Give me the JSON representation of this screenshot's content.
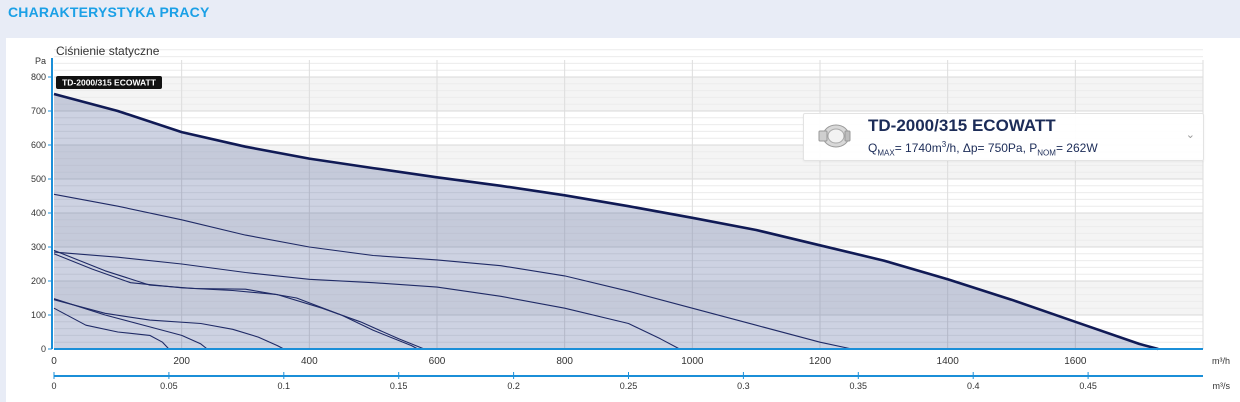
{
  "section": {
    "title": "CHARAKTERYSTYKA PRACY"
  },
  "legend": {
    "name": "TD-2000/315 ECOWATT",
    "q_label": "Q",
    "q_sub": "MAX",
    "q_value": "= 1740m",
    "q_sup": "3",
    "q_unit": "/h,",
    "dp_text": " Δp= 750Pa,",
    "p_label": " P",
    "p_sub": "NOM",
    "p_value": "= 262W",
    "icon": "fan-thumbnail-icon",
    "toggle_icon": "chevron-down-icon"
  },
  "chart_data": {
    "type": "line",
    "title": "Ciśnienie statyczne",
    "ylabel": "Pa",
    "xlabel": "m³/h",
    "x2label": "m³/s",
    "ylim": [
      0,
      850
    ],
    "xlim": [
      0,
      1800
    ],
    "yticks": [
      0,
      100,
      200,
      300,
      400,
      500,
      600,
      700,
      800
    ],
    "xticks": [
      0,
      200,
      400,
      600,
      800,
      1000,
      1200,
      1400,
      1600
    ],
    "x2ticks": [
      "0",
      "0.05",
      "0.1",
      "0.15",
      "0.2",
      "0.25",
      "0.3",
      "0.35",
      "0.4",
      "0.45"
    ],
    "x2values": [
      0,
      0.05,
      0.1,
      0.15,
      0.2,
      0.25,
      0.3,
      0.35,
      0.4,
      0.45
    ],
    "grid": true,
    "curve_label": "TD-2000/315 ECOWATT",
    "series": [
      {
        "name": "TD-2000/315 ECOWATT",
        "main": true,
        "points": [
          [
            0,
            750
          ],
          [
            100,
            700
          ],
          [
            200,
            638
          ],
          [
            300,
            595
          ],
          [
            400,
            560
          ],
          [
            500,
            532
          ],
          [
            600,
            505
          ],
          [
            700,
            480
          ],
          [
            800,
            452
          ],
          [
            900,
            420
          ],
          [
            1000,
            386
          ],
          [
            1100,
            350
          ],
          [
            1200,
            305
          ],
          [
            1300,
            260
          ],
          [
            1400,
            205
          ],
          [
            1500,
            145
          ],
          [
            1600,
            80
          ],
          [
            1700,
            15
          ],
          [
            1730,
            0
          ]
        ]
      },
      {
        "points": [
          [
            0,
            455
          ],
          [
            100,
            420
          ],
          [
            200,
            380
          ],
          [
            300,
            335
          ],
          [
            400,
            300
          ],
          [
            500,
            275
          ],
          [
            600,
            262
          ],
          [
            700,
            245
          ],
          [
            800,
            215
          ],
          [
            900,
            170
          ],
          [
            1000,
            120
          ],
          [
            1100,
            70
          ],
          [
            1200,
            20
          ],
          [
            1250,
            0
          ]
        ]
      },
      {
        "points": [
          [
            0,
            285
          ],
          [
            100,
            270
          ],
          [
            200,
            250
          ],
          [
            300,
            225
          ],
          [
            400,
            205
          ],
          [
            500,
            195
          ],
          [
            600,
            182
          ],
          [
            700,
            155
          ],
          [
            800,
            120
          ],
          [
            900,
            75
          ],
          [
            950,
            30
          ],
          [
            980,
            0
          ]
        ]
      },
      {
        "points": [
          [
            0,
            290
          ],
          [
            80,
            230
          ],
          [
            150,
            188
          ],
          [
            220,
            178
          ],
          [
            300,
            176
          ],
          [
            380,
            150
          ],
          [
            450,
            100
          ],
          [
            500,
            55
          ],
          [
            560,
            10
          ],
          [
            570,
            0
          ]
        ]
      },
      {
        "points": [
          [
            0,
            280
          ],
          [
            60,
            235
          ],
          [
            120,
            195
          ],
          [
            200,
            180
          ],
          [
            280,
            172
          ],
          [
            350,
            160
          ],
          [
            420,
            120
          ],
          [
            480,
            80
          ],
          [
            540,
            30
          ],
          [
            580,
            0
          ]
        ]
      },
      {
        "points": [
          [
            0,
            145
          ],
          [
            80,
            105
          ],
          [
            150,
            85
          ],
          [
            230,
            75
          ],
          [
            280,
            58
          ],
          [
            320,
            35
          ],
          [
            350,
            10
          ],
          [
            360,
            0
          ]
        ]
      },
      {
        "points": [
          [
            0,
            148
          ],
          [
            80,
            100
          ],
          [
            150,
            65
          ],
          [
            200,
            40
          ],
          [
            230,
            15
          ],
          [
            240,
            0
          ]
        ]
      },
      {
        "points": [
          [
            0,
            120
          ],
          [
            50,
            70
          ],
          [
            100,
            50
          ],
          [
            150,
            40
          ],
          [
            170,
            20
          ],
          [
            180,
            0
          ]
        ]
      }
    ]
  }
}
